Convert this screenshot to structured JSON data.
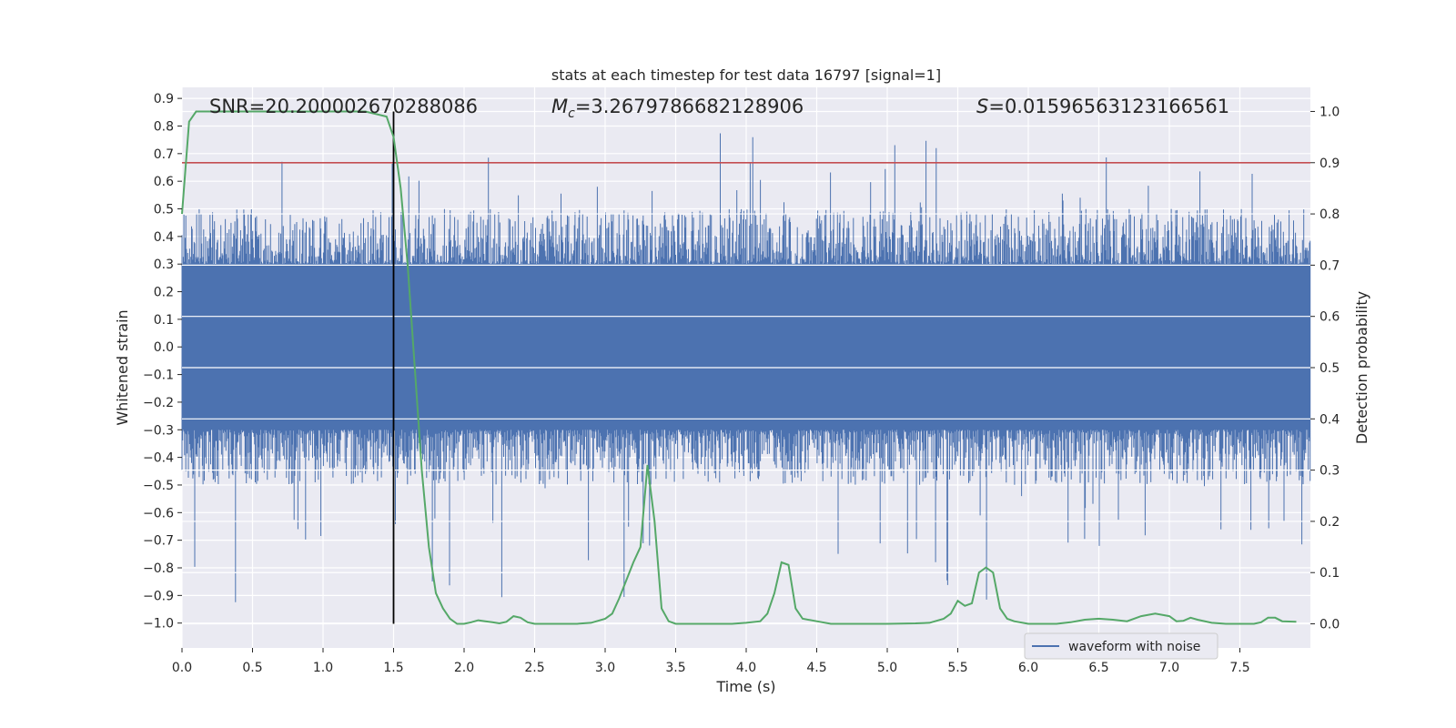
{
  "chart_data": {
    "type": "line",
    "title": "stats at each timestep for test data 16797 [signal=1]",
    "xlabel": "Time (s)",
    "ylabel": "Whitened strain",
    "ylabel_right": "Detection probability",
    "xlim": [
      0.0,
      8.0
    ],
    "ylim": [
      -1.09,
      0.94
    ],
    "ylim_right": [
      -0.047,
      1.047
    ],
    "x_ticks": [
      0.0,
      0.5,
      1.0,
      1.5,
      2.0,
      2.5,
      3.0,
      3.5,
      4.0,
      4.5,
      5.0,
      5.5,
      6.0,
      6.5,
      7.0,
      7.5
    ],
    "y_ticks": [
      -1.0,
      -0.9,
      -0.8,
      -0.7,
      -0.6,
      -0.5,
      -0.4,
      -0.3,
      -0.2,
      -0.1,
      0.0,
      0.1,
      0.2,
      0.3,
      0.4,
      0.5,
      0.6,
      0.7,
      0.8,
      0.9
    ],
    "y_ticks_right": [
      0.0,
      0.1,
      0.2,
      0.3,
      0.4,
      0.5,
      0.6,
      0.7,
      0.8,
      0.9,
      1.0
    ],
    "grid": true,
    "legend": {
      "placement": "lower-right",
      "entries": [
        "waveform with noise"
      ]
    },
    "annotations": {
      "snr": "SNR=20.200002670288086",
      "mc_symbol": "M",
      "mc_sub": "c",
      "mc_value": "=3.2679786682128906",
      "s_symbol": "S",
      "s_value": "=0.01596563123166561"
    },
    "threshold_right": 0.9,
    "vline_x": 1.5,
    "series": [
      {
        "name": "waveform with noise",
        "color": "#4c72b0",
        "axis": "left",
        "kind": "noise",
        "core_amplitude": 0.3,
        "typical_peak": 0.5,
        "max": 0.85,
        "min": -1.0
      },
      {
        "color": "#55a868",
        "axis": "right",
        "x": [
          0.0,
          0.05,
          0.1,
          0.2,
          0.3,
          0.5,
          0.8,
          1.1,
          1.3,
          1.45,
          1.5,
          1.55,
          1.6,
          1.65,
          1.7,
          1.75,
          1.8,
          1.85,
          1.9,
          1.95,
          2.0,
          2.05,
          2.1,
          2.15,
          2.2,
          2.25,
          2.3,
          2.35,
          2.4,
          2.45,
          2.5,
          2.55,
          2.6,
          2.7,
          2.8,
          2.9,
          3.0,
          3.05,
          3.1,
          3.2,
          3.25,
          3.3,
          3.35,
          3.4,
          3.45,
          3.5,
          3.6,
          3.7,
          3.8,
          3.9,
          4.0,
          4.1,
          4.15,
          4.2,
          4.25,
          4.3,
          4.35,
          4.4,
          4.5,
          4.6,
          4.7,
          4.8,
          5.0,
          5.2,
          5.3,
          5.4,
          5.45,
          5.5,
          5.55,
          5.6,
          5.65,
          5.7,
          5.75,
          5.8,
          5.85,
          5.9,
          6.0,
          6.2,
          6.3,
          6.4,
          6.5,
          6.6,
          6.7,
          6.8,
          6.9,
          7.0,
          7.05,
          7.1,
          7.15,
          7.2,
          7.3,
          7.4,
          7.5,
          7.6,
          7.65,
          7.7,
          7.75,
          7.8,
          7.9
        ],
        "values": [
          0.8,
          0.98,
          1.0,
          1.0,
          1.0,
          1.0,
          1.0,
          1.0,
          1.0,
          0.99,
          0.95,
          0.85,
          0.7,
          0.5,
          0.3,
          0.15,
          0.06,
          0.03,
          0.01,
          0.0,
          0.0,
          0.003,
          0.007,
          0.005,
          0.003,
          0.001,
          0.004,
          0.015,
          0.012,
          0.003,
          0.0,
          0.0,
          0.0,
          0.0,
          0.0,
          0.002,
          0.01,
          0.02,
          0.05,
          0.12,
          0.15,
          0.31,
          0.2,
          0.03,
          0.005,
          0.0,
          0.0,
          0.0,
          0.0,
          0.0,
          0.002,
          0.005,
          0.02,
          0.06,
          0.12,
          0.115,
          0.03,
          0.01,
          0.005,
          0.0,
          0.0,
          0.0,
          0.0,
          0.001,
          0.002,
          0.01,
          0.02,
          0.045,
          0.035,
          0.04,
          0.1,
          0.11,
          0.1,
          0.03,
          0.01,
          0.005,
          0.0,
          0.0,
          0.003,
          0.008,
          0.01,
          0.008,
          0.005,
          0.015,
          0.02,
          0.015,
          0.005,
          0.006,
          0.012,
          0.008,
          0.002,
          0.0,
          0.0,
          0.0,
          0.003,
          0.012,
          0.012,
          0.005,
          0.004
        ]
      }
    ]
  }
}
